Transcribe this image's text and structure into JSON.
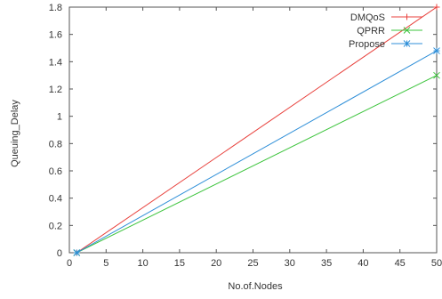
{
  "chart_data": {
    "type": "line",
    "title": "",
    "xlabel": "No.of.Nodes",
    "ylabel": "Queuing_Delay",
    "xlim": [
      0,
      50
    ],
    "ylim": [
      0,
      1.8
    ],
    "xticks": [
      0,
      5,
      10,
      15,
      20,
      25,
      30,
      35,
      40,
      45,
      50
    ],
    "yticks": [
      0,
      0.2,
      0.4,
      0.6,
      0.8,
      1,
      1.2,
      1.4,
      1.6,
      1.8
    ],
    "grid": false,
    "legend_position": "top-right",
    "series": [
      {
        "name": "DMQoS",
        "color": "#e8413c",
        "marker": "plus",
        "x": [
          1,
          50
        ],
        "y": [
          0,
          1.8
        ]
      },
      {
        "name": "QPRR",
        "color": "#3dc43d",
        "marker": "cross",
        "x": [
          1,
          50
        ],
        "y": [
          0,
          1.3
        ]
      },
      {
        "name": "Propose",
        "color": "#2f8fd8",
        "marker": "star",
        "x": [
          1,
          50
        ],
        "y": [
          0,
          1.48
        ]
      }
    ]
  }
}
